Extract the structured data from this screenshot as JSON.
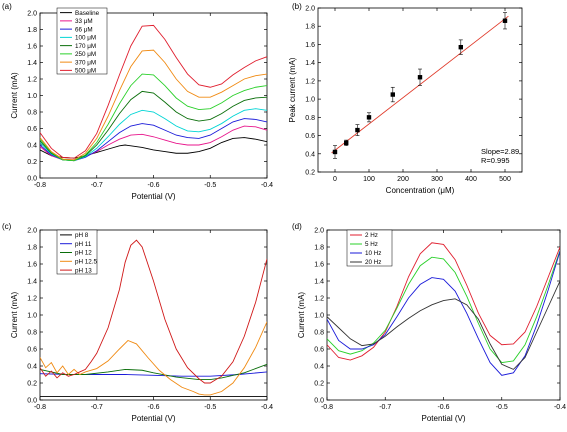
{
  "chart_data": [
    {
      "panel_label": "(a)",
      "type": "line",
      "xlabel": "Potential (V)",
      "ylabel": "Current (mA)",
      "xlim": [
        -0.8,
        -0.4
      ],
      "ylim": [
        0.0,
        2.0
      ],
      "xticks": [
        -0.8,
        -0.7,
        -0.6,
        -0.5,
        -0.4
      ],
      "xtick_labels": [
        "-0.8",
        "-0.7",
        "-0.6",
        "-0.5",
        "-0.4"
      ],
      "yticks": [
        0.0,
        0.2,
        0.4,
        0.6,
        0.8,
        1.0,
        1.2,
        1.4,
        1.6,
        1.8,
        2.0
      ],
      "ytick_labels": [
        "0.0",
        "0.2",
        "0.4",
        "0.6",
        "0.8",
        "1.0",
        "1.2",
        "1.4",
        "1.6",
        "1.8",
        "2.0"
      ],
      "legend": "top-left",
      "series": [
        {
          "name": "Baseline",
          "color": "#000000",
          "x": [
            -0.8,
            -0.78,
            -0.76,
            -0.74,
            -0.72,
            -0.7,
            -0.68,
            -0.66,
            -0.65,
            -0.64,
            -0.62,
            -0.6,
            -0.58,
            -0.56,
            -0.54,
            -0.52,
            -0.5,
            -0.48,
            -0.46,
            -0.44,
            -0.42,
            -0.4
          ],
          "values": [
            0.34,
            0.27,
            0.25,
            0.24,
            0.27,
            0.31,
            0.35,
            0.39,
            0.4,
            0.39,
            0.37,
            0.34,
            0.32,
            0.3,
            0.3,
            0.32,
            0.36,
            0.43,
            0.48,
            0.49,
            0.47,
            0.44
          ]
        },
        {
          "name": "33 μM",
          "color": "#e8168c",
          "x": [
            -0.8,
            -0.78,
            -0.76,
            -0.74,
            -0.72,
            -0.7,
            -0.68,
            -0.66,
            -0.64,
            -0.62,
            -0.6,
            -0.58,
            -0.56,
            -0.54,
            -0.52,
            -0.5,
            -0.48,
            -0.46,
            -0.44,
            -0.42,
            -0.4
          ],
          "values": [
            0.38,
            0.27,
            0.22,
            0.22,
            0.26,
            0.32,
            0.4,
            0.47,
            0.52,
            0.53,
            0.5,
            0.46,
            0.42,
            0.4,
            0.4,
            0.43,
            0.5,
            0.58,
            0.63,
            0.62,
            0.58
          ]
        },
        {
          "name": "66 μM",
          "color": "#1a1ad9",
          "x": [
            -0.8,
            -0.78,
            -0.76,
            -0.74,
            -0.72,
            -0.7,
            -0.68,
            -0.66,
            -0.64,
            -0.62,
            -0.6,
            -0.58,
            -0.56,
            -0.54,
            -0.52,
            -0.5,
            -0.48,
            -0.46,
            -0.44,
            -0.42,
            -0.4
          ],
          "values": [
            0.4,
            0.28,
            0.22,
            0.21,
            0.25,
            0.33,
            0.44,
            0.55,
            0.63,
            0.66,
            0.64,
            0.58,
            0.52,
            0.49,
            0.48,
            0.52,
            0.6,
            0.68,
            0.72,
            0.71,
            0.68
          ]
        },
        {
          "name": "100 μM",
          "color": "#00d4d4",
          "x": [
            -0.8,
            -0.78,
            -0.76,
            -0.74,
            -0.72,
            -0.7,
            -0.68,
            -0.66,
            -0.64,
            -0.62,
            -0.6,
            -0.58,
            -0.56,
            -0.54,
            -0.52,
            -0.5,
            -0.48,
            -0.46,
            -0.44,
            -0.42,
            -0.4
          ],
          "values": [
            0.43,
            0.29,
            0.22,
            0.21,
            0.26,
            0.36,
            0.5,
            0.65,
            0.77,
            0.82,
            0.8,
            0.72,
            0.63,
            0.57,
            0.56,
            0.59,
            0.66,
            0.75,
            0.82,
            0.84,
            0.82
          ]
        },
        {
          "name": "170 μM",
          "color": "#0a6e0a",
          "x": [
            -0.8,
            -0.78,
            -0.76,
            -0.74,
            -0.72,
            -0.7,
            -0.68,
            -0.66,
            -0.64,
            -0.62,
            -0.6,
            -0.58,
            -0.56,
            -0.54,
            -0.52,
            -0.5,
            -0.48,
            -0.46,
            -0.44,
            -0.42,
            -0.4
          ],
          "values": [
            0.45,
            0.3,
            0.22,
            0.21,
            0.27,
            0.4,
            0.58,
            0.78,
            0.95,
            1.05,
            1.03,
            0.92,
            0.8,
            0.72,
            0.69,
            0.71,
            0.78,
            0.87,
            0.94,
            0.97,
            0.98
          ]
        },
        {
          "name": "250 μM",
          "color": "#2ad02a",
          "x": [
            -0.8,
            -0.78,
            -0.76,
            -0.74,
            -0.72,
            -0.7,
            -0.68,
            -0.66,
            -0.64,
            -0.62,
            -0.6,
            -0.58,
            -0.56,
            -0.54,
            -0.52,
            -0.5,
            -0.48,
            -0.46,
            -0.44,
            -0.42,
            -0.4
          ],
          "values": [
            0.47,
            0.31,
            0.22,
            0.21,
            0.28,
            0.43,
            0.65,
            0.9,
            1.12,
            1.26,
            1.25,
            1.12,
            0.97,
            0.87,
            0.83,
            0.84,
            0.91,
            1.0,
            1.06,
            1.1,
            1.12
          ]
        },
        {
          "name": "370 μM",
          "color": "#f08a12",
          "x": [
            -0.8,
            -0.78,
            -0.76,
            -0.74,
            -0.72,
            -0.7,
            -0.68,
            -0.66,
            -0.64,
            -0.62,
            -0.6,
            -0.58,
            -0.56,
            -0.54,
            -0.52,
            -0.5,
            -0.48,
            -0.46,
            -0.44,
            -0.42,
            -0.4
          ],
          "values": [
            0.49,
            0.32,
            0.23,
            0.22,
            0.3,
            0.48,
            0.75,
            1.06,
            1.35,
            1.54,
            1.55,
            1.4,
            1.2,
            1.05,
            0.98,
            0.98,
            1.04,
            1.12,
            1.2,
            1.24,
            1.26
          ]
        },
        {
          "name": "500 μM",
          "color": "#e01e2e",
          "x": [
            -0.8,
            -0.78,
            -0.76,
            -0.74,
            -0.72,
            -0.7,
            -0.68,
            -0.66,
            -0.64,
            -0.62,
            -0.6,
            -0.58,
            -0.56,
            -0.54,
            -0.52,
            -0.5,
            -0.48,
            -0.46,
            -0.44,
            -0.42,
            -0.4
          ],
          "values": [
            0.55,
            0.36,
            0.25,
            0.24,
            0.33,
            0.54,
            0.88,
            1.25,
            1.6,
            1.84,
            1.85,
            1.68,
            1.46,
            1.26,
            1.13,
            1.1,
            1.14,
            1.25,
            1.34,
            1.42,
            1.47
          ]
        }
      ]
    },
    {
      "panel_label": "(b)",
      "type": "scatter",
      "xlabel": "Concentration (μM)",
      "ylabel": "Peak current (mA)",
      "xlim": [
        -50,
        550
      ],
      "ylim": [
        0.2,
        2.0
      ],
      "xticks": [
        0,
        100,
        200,
        300,
        400,
        500
      ],
      "xtick_labels": [
        "0",
        "100",
        "200",
        "300",
        "400",
        "500"
      ],
      "yticks": [
        0.2,
        0.4,
        0.6,
        0.8,
        1.0,
        1.2,
        1.4,
        1.6,
        1.8,
        2.0
      ],
      "ytick_labels": [
        "0.2",
        "0.4",
        "0.6",
        "0.8",
        "1.0",
        "1.2",
        "1.4",
        "1.6",
        "1.8",
        "2.0"
      ],
      "points": {
        "x": [
          0,
          33,
          66,
          100,
          170,
          250,
          370,
          500
        ],
        "y": [
          0.42,
          0.52,
          0.66,
          0.8,
          1.05,
          1.24,
          1.57,
          1.86
        ],
        "err": [
          0.07,
          0.03,
          0.06,
          0.05,
          0.08,
          0.09,
          0.08,
          0.09
        ],
        "color": "#000000"
      },
      "fit": {
        "x": [
          -10,
          510
        ],
        "y": [
          0.41,
          1.91
        ],
        "color": "#e03a2a"
      },
      "annotations": [
        "Slope=2.89",
        "R=0.995"
      ]
    },
    {
      "panel_label": "(c)",
      "type": "line",
      "xlabel": "Potential (V)",
      "ylabel": "Current (mA)",
      "xlim": [
        -0.8,
        -0.4
      ],
      "ylim": [
        0.0,
        2.0
      ],
      "xticks": [
        -0.8,
        -0.7,
        -0.6,
        -0.5,
        -0.4
      ],
      "xtick_labels": [
        "-0.8",
        "-0.7",
        "-0.6",
        "-0.5",
        "-0.4"
      ],
      "yticks": [
        0.0,
        0.2,
        0.4,
        0.6,
        0.8,
        1.0,
        1.2,
        1.4,
        1.6,
        1.8,
        2.0
      ],
      "ytick_labels": [
        "0.0",
        "0.2",
        "0.4",
        "0.6",
        "0.8",
        "1.0",
        "1.2",
        "1.4",
        "1.6",
        "1.8",
        "2.0"
      ],
      "legend": "top-left",
      "series": [
        {
          "name": "pH  8",
          "color": "#000000",
          "x": [
            -0.8,
            -0.7,
            -0.6,
            -0.5,
            -0.4
          ],
          "values": [
            0.04,
            0.04,
            0.04,
            0.04,
            0.04
          ]
        },
        {
          "name": "pH  11",
          "color": "#1a1ad9",
          "x": [
            -0.8,
            -0.75,
            -0.7,
            -0.65,
            -0.6,
            -0.55,
            -0.5,
            -0.45,
            -0.4
          ],
          "values": [
            0.31,
            0.3,
            0.3,
            0.3,
            0.29,
            0.28,
            0.28,
            0.3,
            0.33
          ]
        },
        {
          "name": "pH  12",
          "color": "#0a6e0a",
          "x": [
            -0.8,
            -0.76,
            -0.72,
            -0.68,
            -0.65,
            -0.62,
            -0.6,
            -0.56,
            -0.52,
            -0.5,
            -0.48,
            -0.44,
            -0.42,
            -0.4
          ],
          "values": [
            0.36,
            0.3,
            0.3,
            0.33,
            0.36,
            0.35,
            0.32,
            0.27,
            0.24,
            0.24,
            0.26,
            0.32,
            0.37,
            0.42
          ]
        },
        {
          "name": "pH  12.5",
          "color": "#f08a12",
          "x": [
            -0.8,
            -0.79,
            -0.78,
            -0.77,
            -0.76,
            -0.75,
            -0.74,
            -0.73,
            -0.72,
            -0.7,
            -0.68,
            -0.66,
            -0.645,
            -0.63,
            -0.61,
            -0.59,
            -0.57,
            -0.55,
            -0.53,
            -0.52,
            -0.51,
            -0.5,
            -0.48,
            -0.46,
            -0.44,
            -0.42,
            -0.4
          ],
          "values": [
            0.5,
            0.38,
            0.44,
            0.32,
            0.4,
            0.3,
            0.36,
            0.3,
            0.33,
            0.37,
            0.46,
            0.6,
            0.7,
            0.66,
            0.5,
            0.35,
            0.24,
            0.15,
            0.1,
            0.07,
            0.06,
            0.06,
            0.1,
            0.2,
            0.38,
            0.62,
            0.92
          ]
        },
        {
          "name": "pH  13",
          "color": "#d01818",
          "x": [
            -0.8,
            -0.79,
            -0.78,
            -0.77,
            -0.76,
            -0.75,
            -0.74,
            -0.73,
            -0.72,
            -0.71,
            -0.7,
            -0.68,
            -0.66,
            -0.65,
            -0.64,
            -0.63,
            -0.62,
            -0.6,
            -0.58,
            -0.56,
            -0.54,
            -0.52,
            -0.51,
            -0.5,
            -0.48,
            -0.46,
            -0.44,
            -0.42,
            -0.4
          ],
          "values": [
            0.38,
            0.28,
            0.34,
            0.26,
            0.32,
            0.28,
            0.3,
            0.33,
            0.36,
            0.45,
            0.55,
            0.85,
            1.3,
            1.62,
            1.82,
            1.88,
            1.8,
            1.4,
            0.95,
            0.6,
            0.38,
            0.25,
            0.2,
            0.2,
            0.28,
            0.45,
            0.75,
            1.15,
            1.66
          ]
        }
      ]
    },
    {
      "panel_label": "(d)",
      "type": "line",
      "xlabel": "Potential (V)",
      "ylabel": "Current (mA)",
      "xlim": [
        -0.8,
        -0.4
      ],
      "ylim": [
        0.0,
        2.0
      ],
      "xticks": [
        -0.8,
        -0.7,
        -0.6,
        -0.5,
        -0.4
      ],
      "xtick_labels": [
        "-0.8",
        "-0.7",
        "-0.6",
        "-0.5",
        "-0.4"
      ],
      "yticks": [
        0.0,
        0.2,
        0.4,
        0.6,
        0.8,
        1.0,
        1.2,
        1.4,
        1.6,
        1.8,
        2.0
      ],
      "ytick_labels": [
        "0.0",
        "0.2",
        "0.4",
        "0.6",
        "0.8",
        "1.0",
        "1.2",
        "1.4",
        "1.6",
        "1.8",
        "2.0"
      ],
      "legend": "top-left",
      "series": [
        {
          "name": "2 Hz",
          "color": "#e01e2e",
          "x": [
            -0.8,
            -0.78,
            -0.76,
            -0.74,
            -0.72,
            -0.7,
            -0.68,
            -0.66,
            -0.64,
            -0.62,
            -0.6,
            -0.58,
            -0.56,
            -0.54,
            -0.52,
            -0.5,
            -0.48,
            -0.46,
            -0.44,
            -0.42,
            -0.4
          ],
          "values": [
            0.65,
            0.5,
            0.47,
            0.52,
            0.62,
            0.8,
            1.1,
            1.45,
            1.72,
            1.85,
            1.83,
            1.65,
            1.35,
            1.02,
            0.76,
            0.65,
            0.66,
            0.8,
            1.1,
            1.45,
            1.8
          ]
        },
        {
          "name": "5 Hz",
          "color": "#2ad02a",
          "x": [
            -0.8,
            -0.78,
            -0.76,
            -0.74,
            -0.72,
            -0.7,
            -0.68,
            -0.66,
            -0.64,
            -0.62,
            -0.6,
            -0.58,
            -0.56,
            -0.54,
            -0.52,
            -0.5,
            -0.48,
            -0.46,
            -0.44,
            -0.42,
            -0.4
          ],
          "values": [
            0.72,
            0.58,
            0.54,
            0.58,
            0.67,
            0.82,
            1.08,
            1.36,
            1.58,
            1.68,
            1.66,
            1.5,
            1.22,
            0.9,
            0.6,
            0.44,
            0.46,
            0.65,
            0.98,
            1.36,
            1.76
          ]
        },
        {
          "name": "10 Hz",
          "color": "#1a1ad9",
          "x": [
            -0.8,
            -0.78,
            -0.76,
            -0.74,
            -0.72,
            -0.7,
            -0.68,
            -0.66,
            -0.64,
            -0.62,
            -0.6,
            -0.58,
            -0.56,
            -0.54,
            -0.52,
            -0.5,
            -0.48,
            -0.46,
            -0.44,
            -0.42,
            -0.4
          ],
          "values": [
            0.95,
            0.7,
            0.6,
            0.6,
            0.65,
            0.77,
            0.98,
            1.2,
            1.36,
            1.44,
            1.42,
            1.28,
            1.02,
            0.72,
            0.44,
            0.29,
            0.32,
            0.52,
            0.88,
            1.3,
            1.75
          ]
        },
        {
          "name": "20 Hz",
          "color": "#333333",
          "x": [
            -0.8,
            -0.78,
            -0.76,
            -0.74,
            -0.72,
            -0.7,
            -0.68,
            -0.66,
            -0.64,
            -0.62,
            -0.6,
            -0.58,
            -0.56,
            -0.54,
            -0.52,
            -0.5,
            -0.48,
            -0.46,
            -0.44,
            -0.42,
            -0.4
          ],
          "values": [
            0.98,
            0.85,
            0.72,
            0.64,
            0.66,
            0.75,
            0.86,
            0.96,
            1.05,
            1.12,
            1.17,
            1.19,
            1.12,
            0.95,
            0.66,
            0.42,
            0.36,
            0.5,
            0.8,
            1.1,
            1.4
          ]
        }
      ]
    }
  ]
}
